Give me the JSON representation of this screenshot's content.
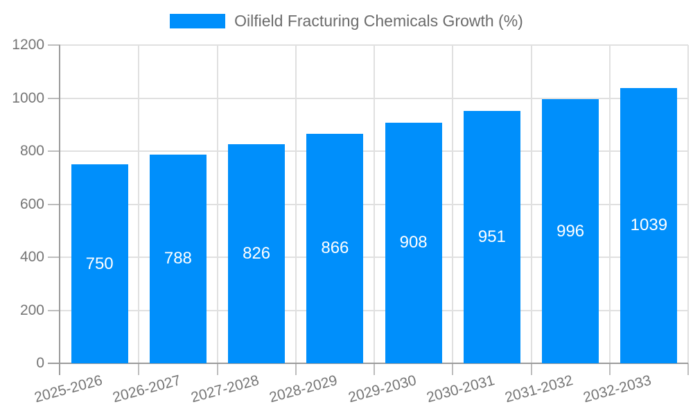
{
  "legend": {
    "label": "Oilfield Fracturing Chemicals Growth (%)",
    "swatch_color": "#008FFB"
  },
  "chart_data": {
    "type": "bar",
    "title": "",
    "legend_entries": [
      "Oilfield Fracturing Chemicals Growth (%)"
    ],
    "legend_position": "top",
    "categories": [
      "2025-2026",
      "2026-2027",
      "2027-2028",
      "2028-2029",
      "2029-2030",
      "2030-2031",
      "2031-2032",
      "2032-2033"
    ],
    "series": [
      {
        "name": "Oilfield Fracturing Chemicals Growth (%)",
        "color": "#008FFB",
        "values": [
          750,
          788,
          826,
          866,
          908,
          951,
          996,
          1039
        ]
      }
    ],
    "bar_value_labels": [
      "750",
      "788",
      "826",
      "866",
      "908",
      "951",
      "996",
      "1039"
    ],
    "xlabel": "",
    "ylabel": "",
    "ylim": [
      0,
      1200
    ],
    "ytick_step": 200,
    "ytick_labels": [
      "0",
      "200",
      "400",
      "600",
      "800",
      "1000",
      "1200"
    ],
    "grid": "horizontal-and-vertical",
    "x_label_rotation_deg": -15
  },
  "colors": {
    "bar": "#008FFB",
    "bar_label": "#ffffff",
    "grid_line": "#e0e0e0",
    "axis_line": "#9a9a9a",
    "tick_mark": "#bdbdbd",
    "tick_label": "#757575",
    "legend_text": "#6b6b6b",
    "background": "#ffffff"
  }
}
